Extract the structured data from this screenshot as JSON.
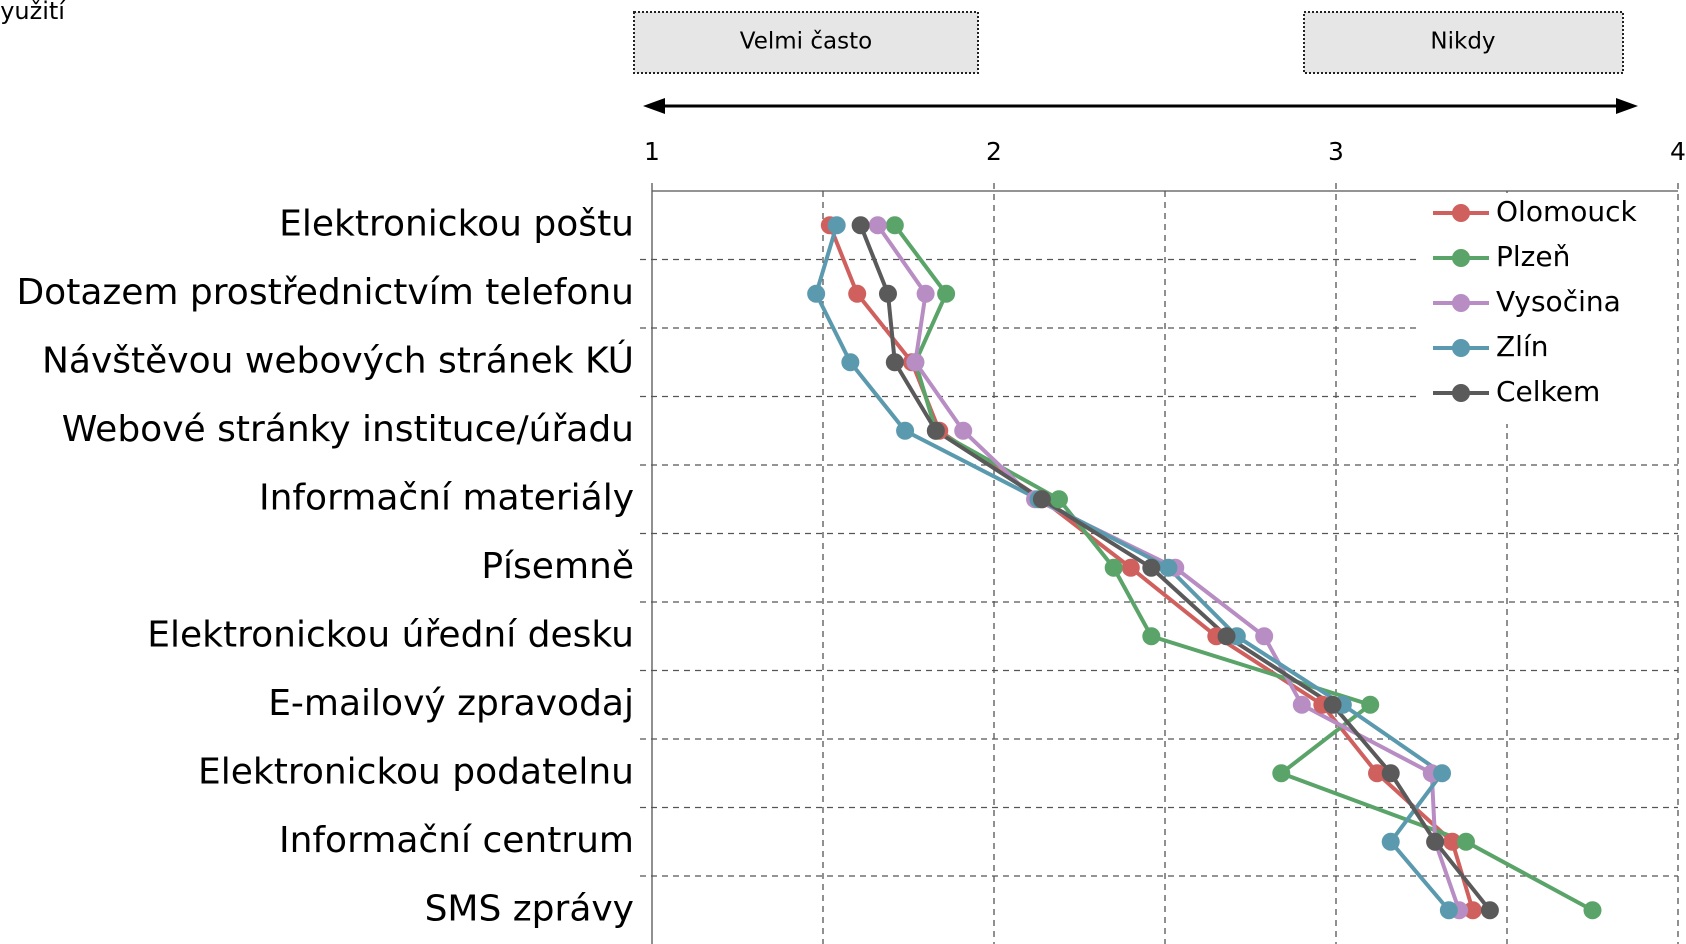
{
  "chart_data": {
    "type": "line",
    "corner_text": "využití",
    "annotations": [
      "Velmi často",
      "Nikdy"
    ],
    "categories": [
      "Elektronickou poštu",
      "Dotazem prostřednictvím telefonu",
      "Návštěvou webových stránek KÚ",
      "Webové stránky instituce/úřadu",
      "Informační materiály",
      "Písemně",
      "Elektronickou úřední desku",
      "E-mailový zpravodaj",
      "Elektronickou podatelnu",
      "Informační centrum",
      "SMS zprávy"
    ],
    "series": [
      {
        "name": "Olomouck",
        "color": "#d0605e",
        "values": [
          1.52,
          1.6,
          1.76,
          1.84,
          2.14,
          2.4,
          2.65,
          2.96,
          3.12,
          3.34,
          3.4
        ]
      },
      {
        "name": "Plzeň",
        "color": "#5aa469",
        "values": [
          1.71,
          1.86,
          1.77,
          1.83,
          2.19,
          2.35,
          2.46,
          3.1,
          2.84,
          3.38,
          3.75
        ]
      },
      {
        "name": "Vysočina",
        "color": "#b88dc4",
        "values": [
          1.66,
          1.8,
          1.77,
          1.91,
          2.12,
          2.53,
          2.79,
          2.9,
          3.28,
          3.29,
          3.36
        ]
      },
      {
        "name": "Zlín",
        "color": "#5b9aae",
        "values": [
          1.54,
          1.48,
          1.58,
          1.74,
          2.13,
          2.51,
          2.71,
          3.02,
          3.31,
          3.16,
          3.33
        ]
      },
      {
        "name": "Celkem",
        "color": "#5a5a5a",
        "values": [
          1.61,
          1.69,
          1.71,
          1.83,
          2.14,
          2.46,
          2.68,
          2.99,
          3.16,
          3.29,
          3.45
        ]
      }
    ],
    "xlim": [
      1,
      4
    ],
    "xticks": [
      1,
      2,
      3,
      4
    ],
    "minor_xticks": [
      1.5,
      2.5,
      3.5
    ],
    "grid": true,
    "legend": "top-right"
  }
}
